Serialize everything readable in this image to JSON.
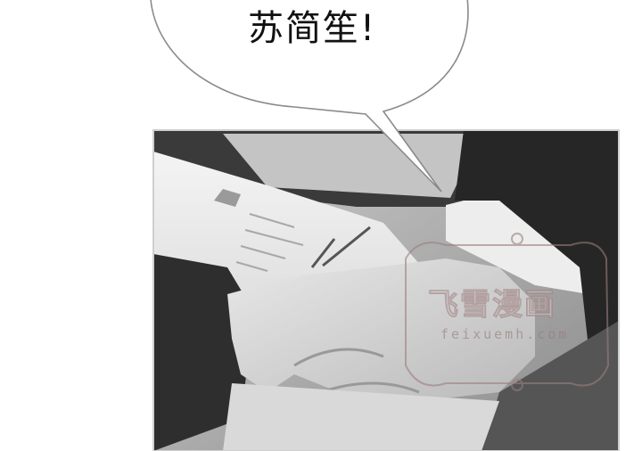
{
  "speech_bubble": {
    "text": "苏简笙!"
  },
  "watermark": {
    "title": "飞雪漫画",
    "url": "feixuemh.com"
  }
}
